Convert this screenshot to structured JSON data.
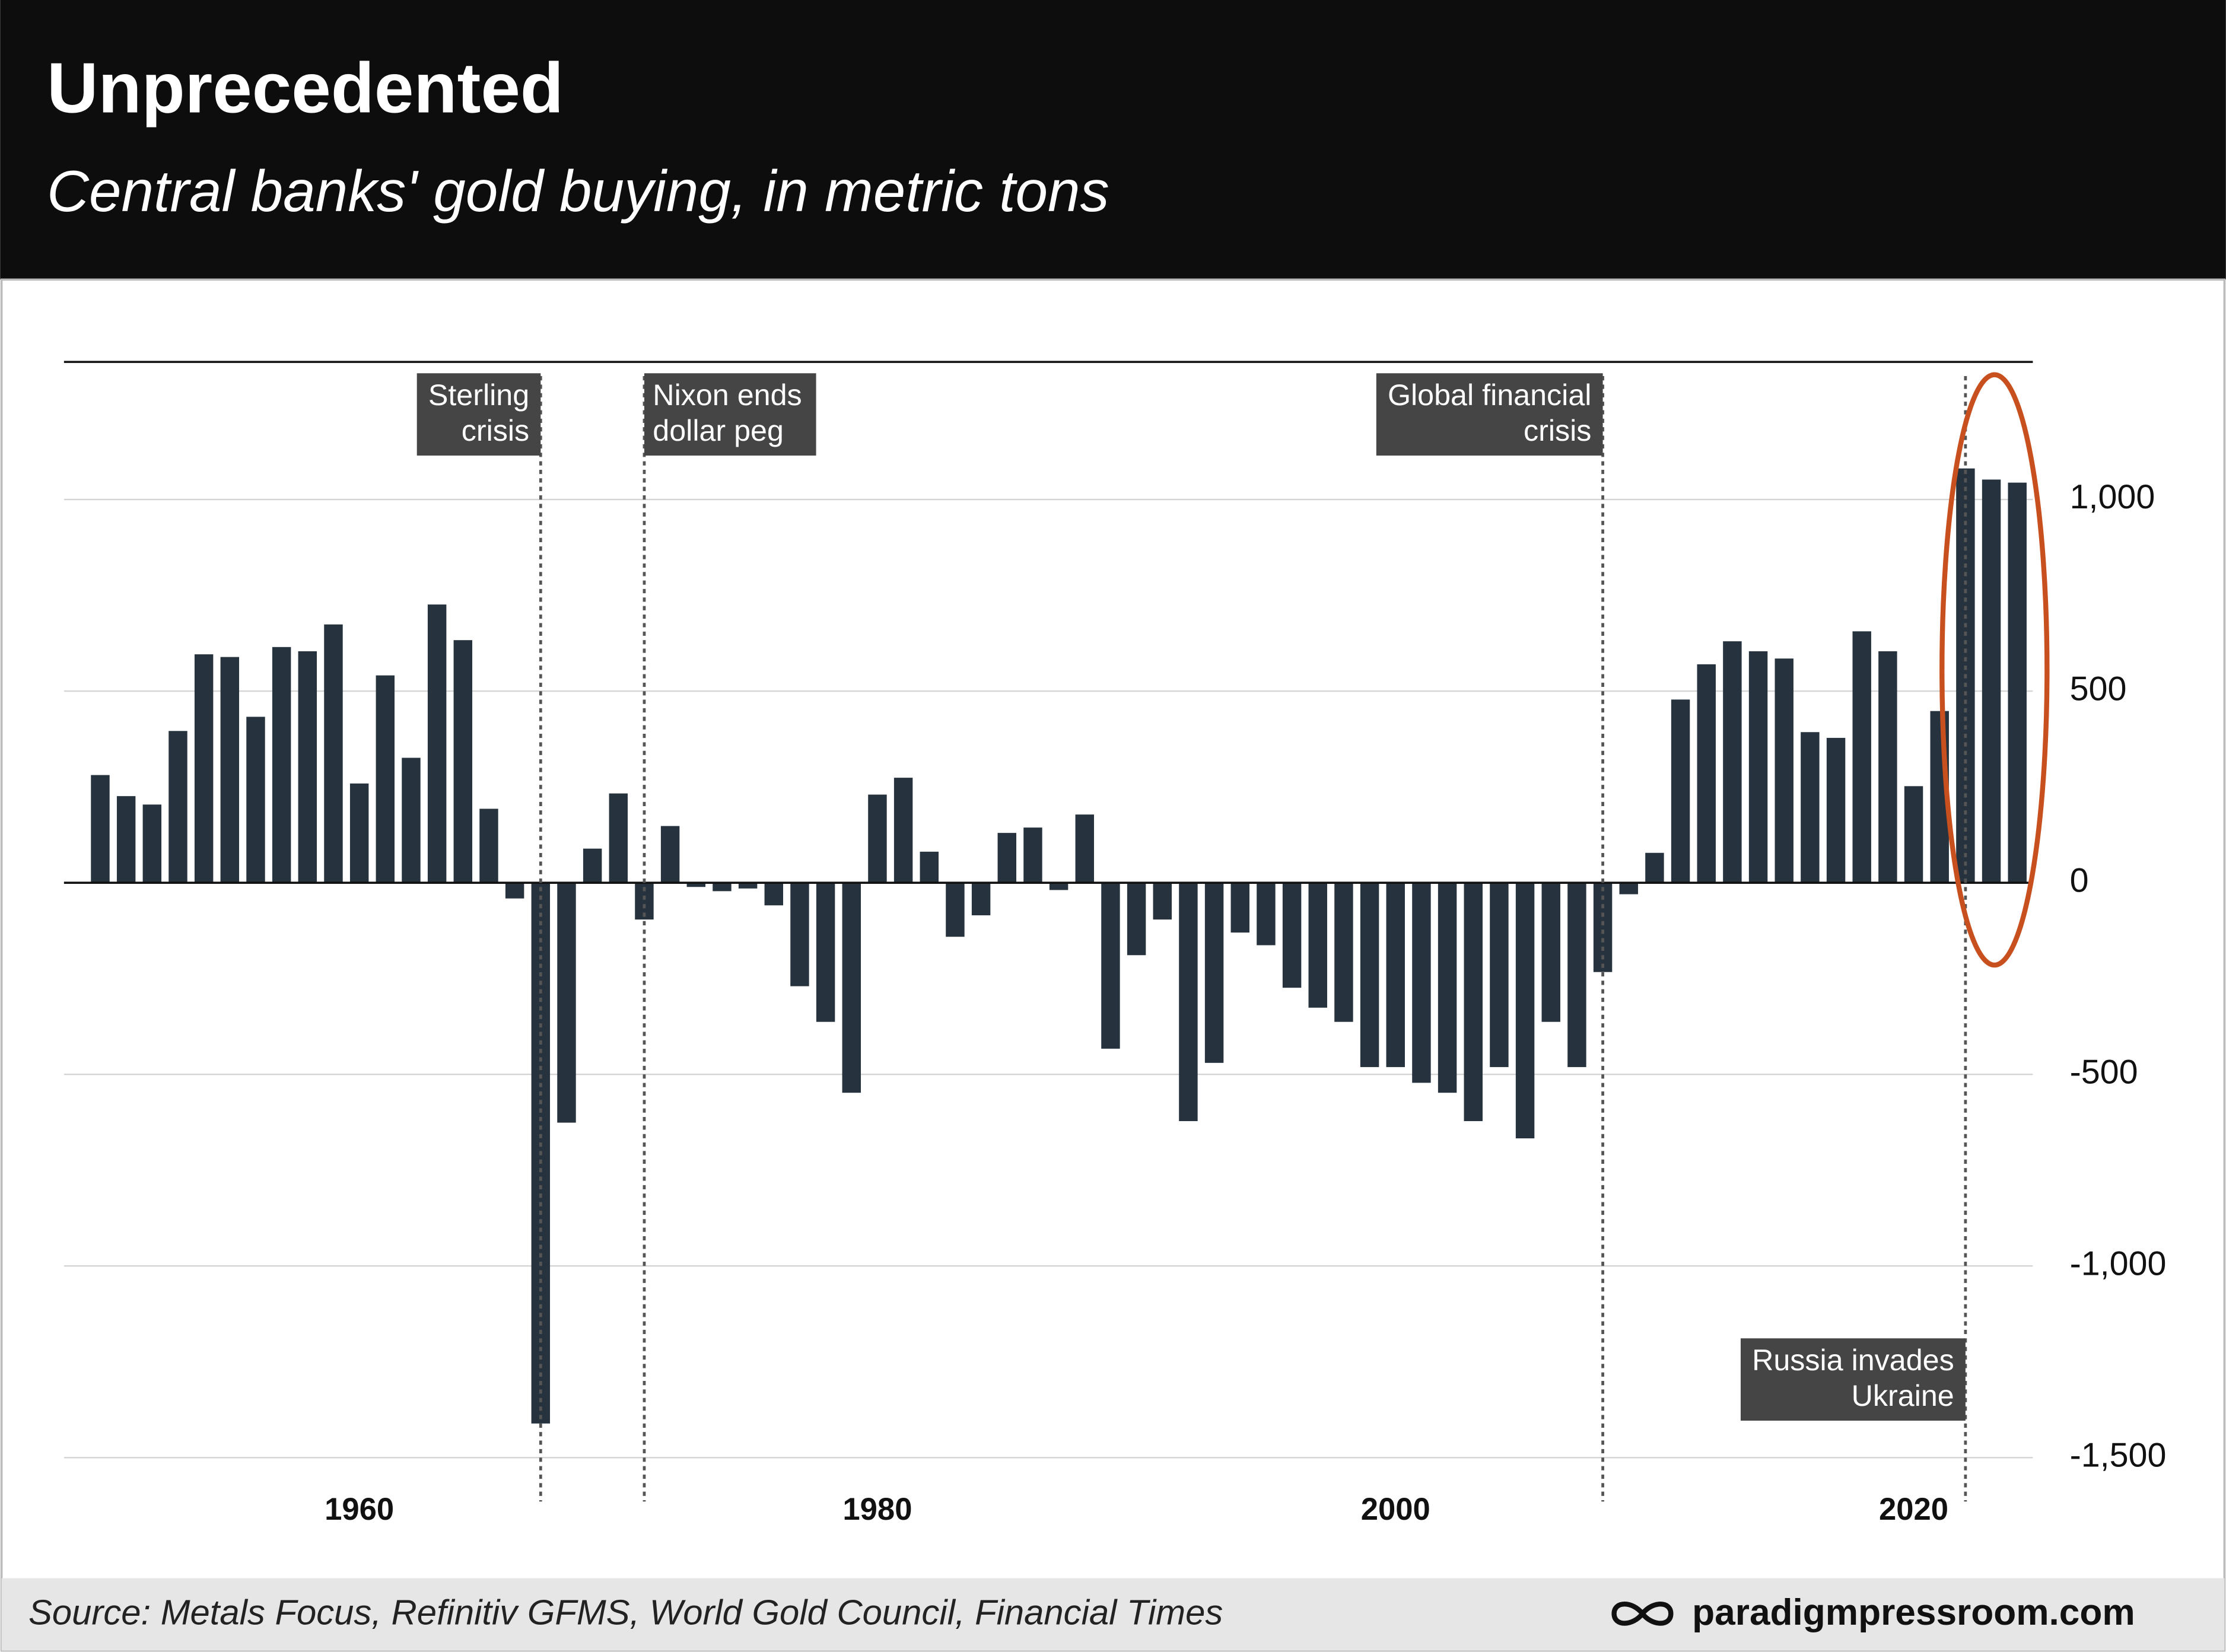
{
  "chart_data": {
    "type": "bar",
    "title": "Unprecedented",
    "subtitle": "Central banks' gold buying, in metric tons",
    "source": "Source: Metals Focus, Refinitiv GFMS, World Gold Council, Financial Times",
    "brand": "paradigmpressroom.com",
    "x": [
      1950,
      1951,
      1952,
      1953,
      1954,
      1955,
      1956,
      1957,
      1958,
      1959,
      1960,
      1961,
      1962,
      1963,
      1964,
      1965,
      1966,
      1967,
      1968,
      1969,
      1970,
      1971,
      1972,
      1973,
      1974,
      1975,
      1976,
      1977,
      1978,
      1979,
      1980,
      1981,
      1982,
      1983,
      1984,
      1985,
      1986,
      1987,
      1988,
      1989,
      1990,
      1991,
      1992,
      1993,
      1994,
      1995,
      1996,
      1997,
      1998,
      1999,
      2000,
      2001,
      2002,
      2003,
      2004,
      2005,
      2006,
      2007,
      2008,
      2009,
      2010,
      2011,
      2012,
      2013,
      2014,
      2015,
      2016,
      2017,
      2018,
      2019,
      2020,
      2021,
      2022,
      2023,
      2024
    ],
    "values": [
      281,
      226,
      204,
      396,
      596,
      589,
      433,
      615,
      604,
      674,
      259,
      541,
      326,
      726,
      633,
      193,
      -41,
      -1411,
      -626,
      89,
      233,
      -96,
      148,
      -11,
      -22,
      -15,
      -59,
      -270,
      -363,
      -548,
      230,
      274,
      81,
      -141,
      -85,
      130,
      144,
      -19,
      178,
      -433,
      -189,
      -96,
      -622,
      -470,
      -130,
      -163,
      -274,
      -326,
      -363,
      -481,
      -481,
      -522,
      -548,
      -622,
      -481,
      -667,
      -363,
      -481,
      -233,
      -30,
      78,
      478,
      570,
      630,
      604,
      585,
      393,
      378,
      656,
      604,
      252,
      448,
      1081,
      1052,
      1044
    ],
    "color": "#26323d",
    "xlim": [
      1948.6,
      2024.6
    ],
    "xticks": [
      1960,
      1980,
      2000,
      2020
    ],
    "ylim": [
      -1511,
      1359
    ],
    "yticks": [
      {
        "value": 1000,
        "label": "1,000"
      },
      500,
      0,
      -500,
      {
        "value": -1000,
        "label": "-1,000"
      },
      {
        "value": -1500,
        "label": "-1,500"
      }
    ],
    "grid": true,
    "annotations": [
      {
        "x": 1967,
        "text": [
          "Sterling",
          "crisis"
        ]
      },
      {
        "x": 1971,
        "text": [
          "Nixon ends",
          "dollar peg"
        ]
      },
      {
        "x": 2008,
        "text": [
          "Global financial",
          "crisis"
        ]
      },
      {
        "x": 2022,
        "text": [
          "Russia invades",
          "Ukraine"
        ]
      }
    ]
  }
}
